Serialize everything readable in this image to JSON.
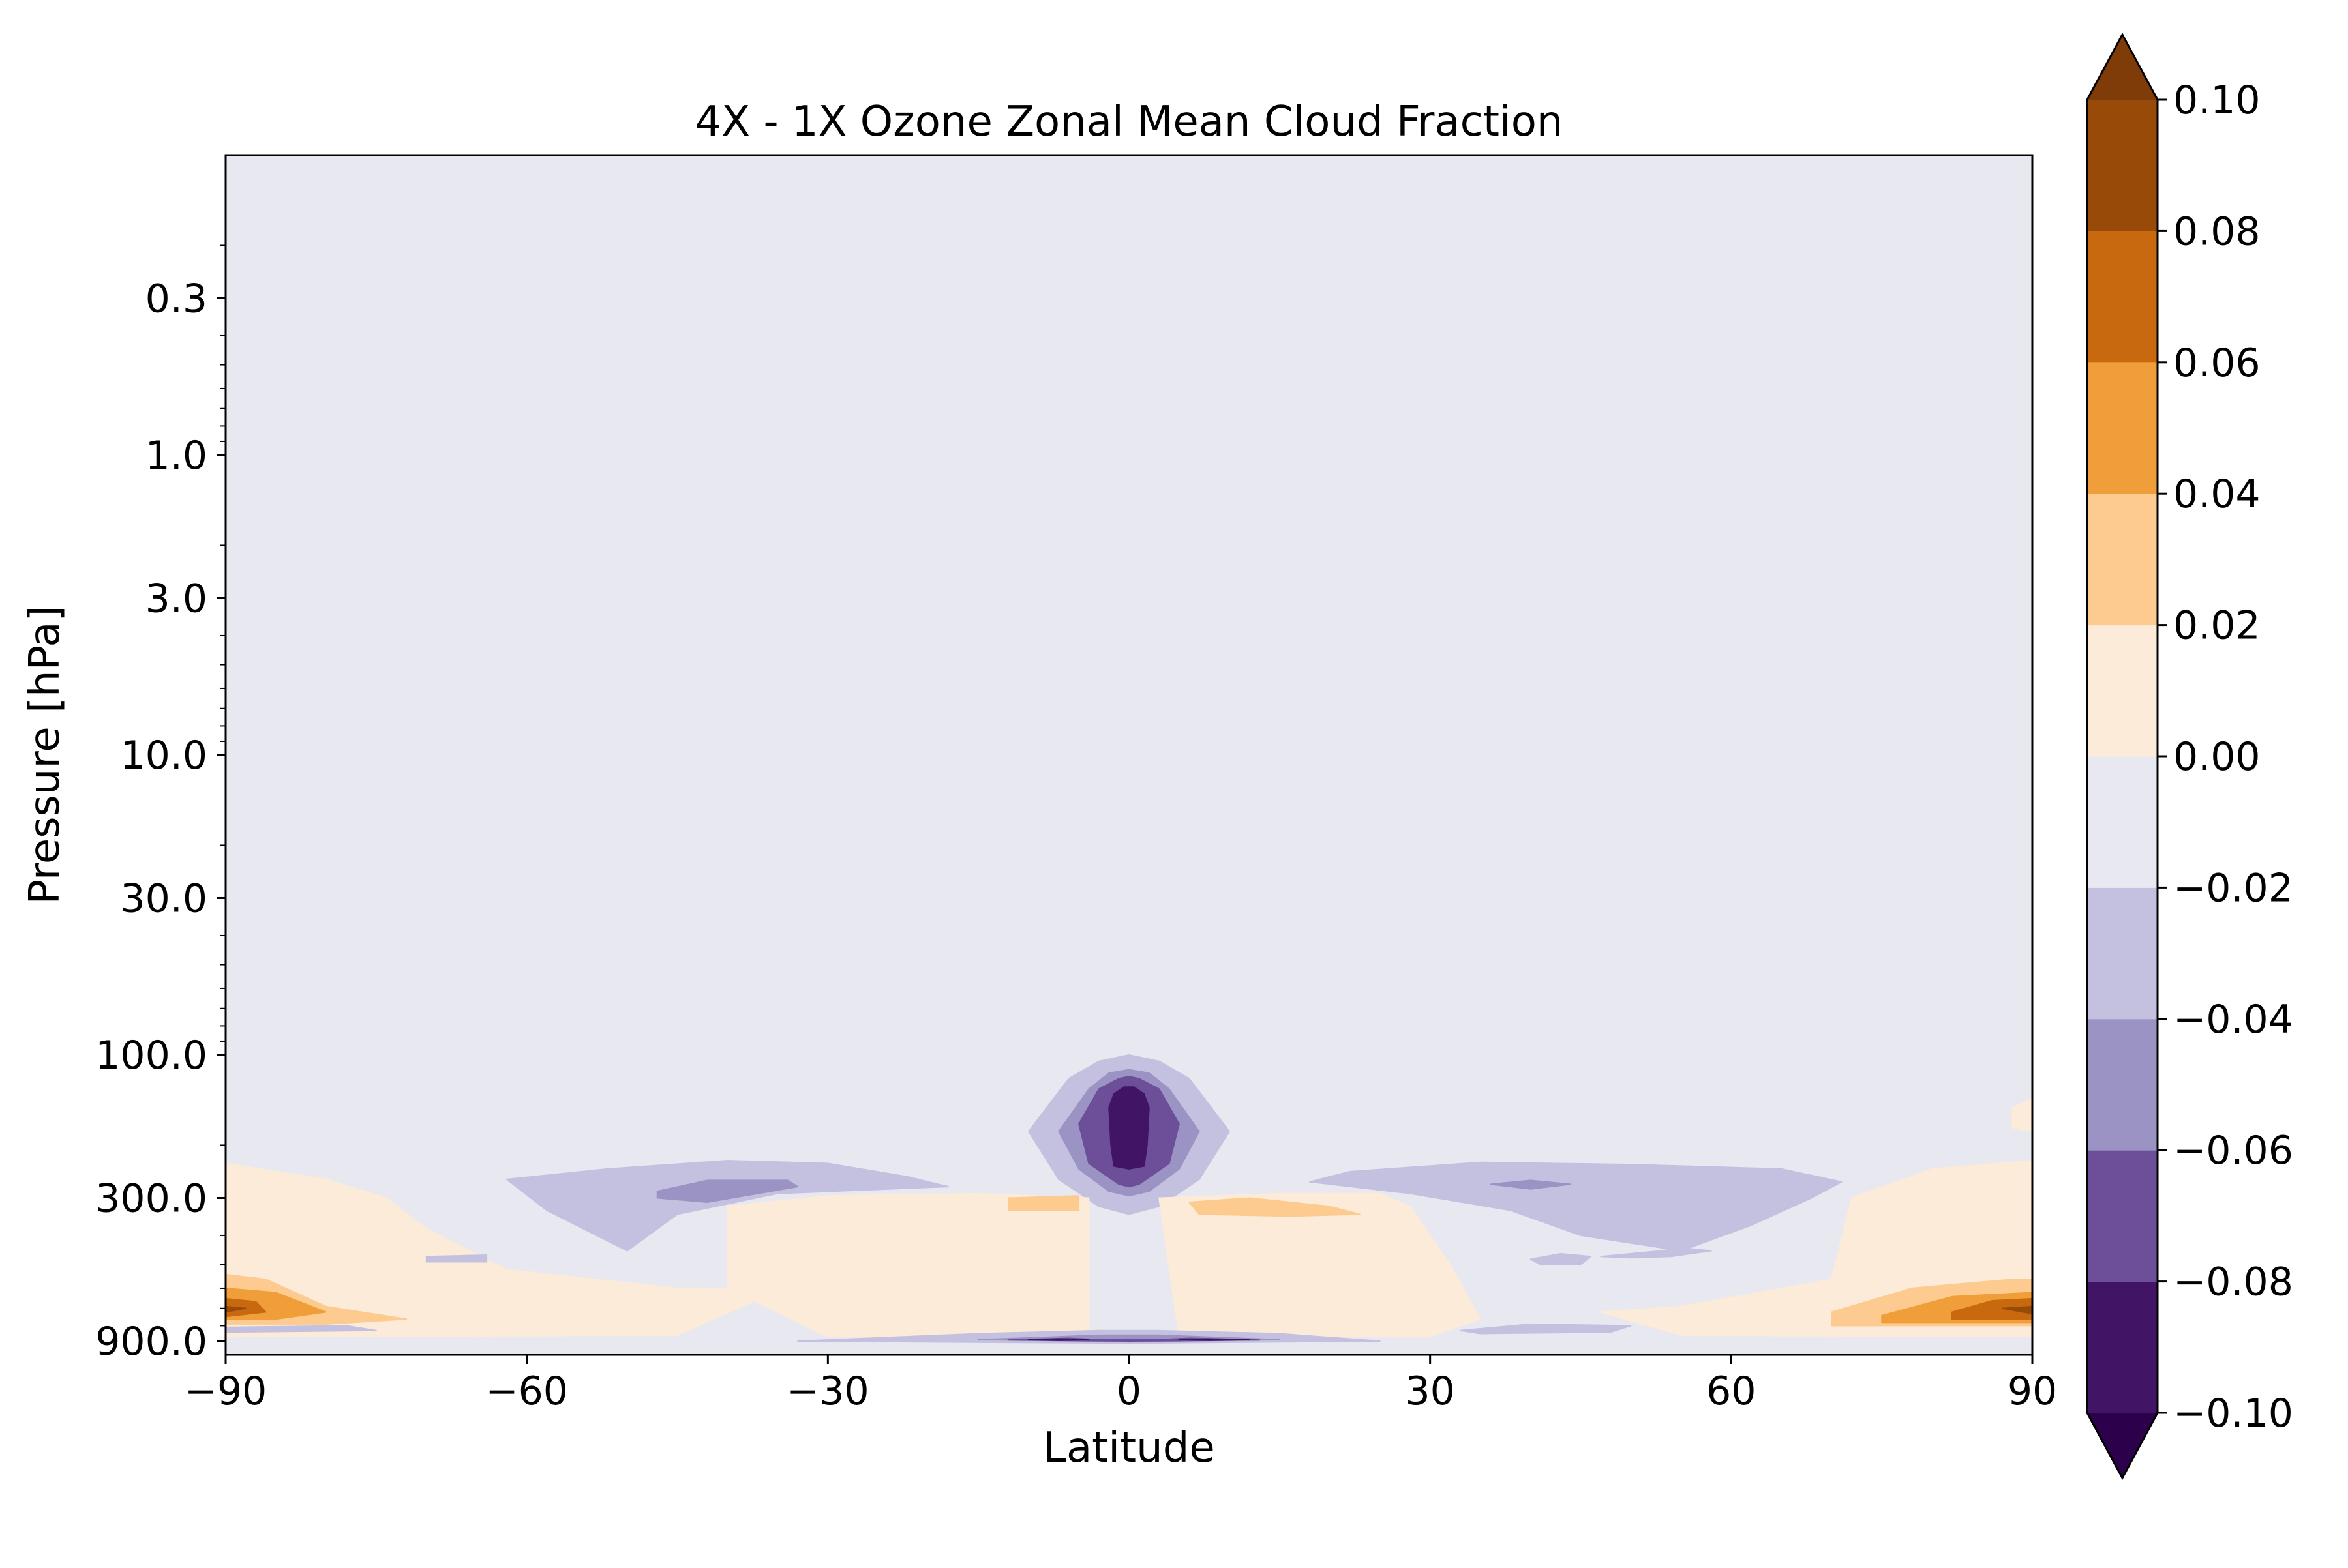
{
  "chart_data": {
    "type": "heatmap",
    "subtype": "filled-contour",
    "title": "4X - 1X Ozone Zonal Mean Cloud Fraction",
    "xlabel": "Latitude",
    "ylabel": "Pressure [hPa]",
    "xlim": [
      -90,
      90
    ],
    "x_ticks": [
      -90,
      -60,
      -30,
      0,
      30,
      60,
      90
    ],
    "x_tick_labels": [
      "−90",
      "−60",
      "−30",
      "0",
      "30",
      "60",
      "90"
    ],
    "y_scale": "log",
    "y_inverted": true,
    "ylim": [
      0.1,
      1000
    ],
    "y_ticks": [
      0.3,
      1.0,
      3.0,
      10.0,
      30.0,
      100.0,
      300.0,
      900.0
    ],
    "y_tick_labels": [
      "0.3",
      "1.0",
      "3.0",
      "10.0",
      "30.0",
      "100.0",
      "300.0",
      "900.0"
    ],
    "grid": false,
    "colormap": "PuOr_r",
    "colorbar": {
      "levels": [
        -0.1,
        -0.08,
        -0.06,
        -0.04,
        -0.02,
        0.0,
        0.02,
        0.04,
        0.06,
        0.08,
        0.1
      ],
      "tick_labels": [
        "−0.10",
        "−0.08",
        "−0.06",
        "−0.04",
        "−0.02",
        "0.00",
        "0.02",
        "0.04",
        "0.06",
        "0.08",
        "0.10"
      ],
      "extend": "both",
      "under_color": "#2d004b",
      "over_color": "#7f3b08",
      "colors": [
        "#421466",
        "#6c4f98",
        "#9b93c3",
        "#c4c1e0",
        "#e8e8f1",
        "#fbebd8",
        "#fdca8f",
        "#ef9e3a",
        "#c8690f",
        "#984a09"
      ]
    },
    "background_level": "-0.02 to 0.00",
    "regions": [
      {
        "level": "-0.04 to -0.02",
        "color": "#c4c1e0",
        "points": [
          [
            -10,
            180
          ],
          [
            -6,
            120
          ],
          [
            -3,
            105
          ],
          [
            0,
            100
          ],
          [
            3,
            105
          ],
          [
            6,
            120
          ],
          [
            10,
            180
          ],
          [
            7,
            260
          ],
          [
            3,
            320
          ],
          [
            0,
            340
          ],
          [
            -3,
            320
          ],
          [
            -7,
            260
          ]
        ]
      },
      {
        "level": "-0.06 to -0.04",
        "color": "#9b93c3",
        "points": [
          [
            -7,
            180
          ],
          [
            -4,
            130
          ],
          [
            -2,
            115
          ],
          [
            0,
            112
          ],
          [
            2,
            115
          ],
          [
            4,
            130
          ],
          [
            7,
            180
          ],
          [
            5,
            240
          ],
          [
            2,
            285
          ],
          [
            0,
            295
          ],
          [
            -2,
            285
          ],
          [
            -5,
            240
          ]
        ]
      },
      {
        "level": "-0.08 to -0.06",
        "color": "#6c4f98",
        "points": [
          [
            -5,
            170
          ],
          [
            -3,
            130
          ],
          [
            -1,
            120
          ],
          [
            0,
            118
          ],
          [
            1,
            120
          ],
          [
            3,
            130
          ],
          [
            5,
            170
          ],
          [
            4,
            230
          ],
          [
            1,
            270
          ],
          [
            0,
            275
          ],
          [
            -1,
            270
          ],
          [
            -4,
            230
          ]
        ]
      },
      {
        "level": "-0.10 to -0.08",
        "color": "#421466",
        "points": [
          [
            -2,
            150
          ],
          [
            -1.5,
            135
          ],
          [
            -0.5,
            128
          ],
          [
            0.5,
            128
          ],
          [
            1.5,
            135
          ],
          [
            2,
            150
          ],
          [
            1.8,
            200
          ],
          [
            1.5,
            235
          ],
          [
            0,
            240
          ],
          [
            -1.5,
            235
          ],
          [
            -1.8,
            200
          ]
        ]
      },
      {
        "level": "-0.04 to -0.02",
        "color": "#c4c1e0",
        "points": [
          [
            -62,
            260
          ],
          [
            -52,
            240
          ],
          [
            -40,
            225
          ],
          [
            -30,
            230
          ],
          [
            -22,
            255
          ],
          [
            -18,
            275
          ],
          [
            -35,
            290
          ],
          [
            -45,
            340
          ],
          [
            -50,
            450
          ],
          [
            -58,
            330
          ]
        ]
      },
      {
        "level": "-0.06 to -0.04",
        "color": "#9b93c3",
        "points": [
          [
            -47,
            285
          ],
          [
            -42,
            262
          ],
          [
            -34,
            262
          ],
          [
            -33,
            275
          ],
          [
            -42,
            310
          ],
          [
            -47,
            300
          ]
        ]
      },
      {
        "level": "-0.04 to -0.02",
        "color": "#c4c1e0",
        "points": [
          [
            18,
            265
          ],
          [
            22,
            245
          ],
          [
            35,
            228
          ],
          [
            50,
            232
          ],
          [
            65,
            240
          ],
          [
            71,
            265
          ],
          [
            68,
            300
          ],
          [
            62,
            370
          ],
          [
            55,
            450
          ],
          [
            45,
            400
          ],
          [
            38,
            330
          ],
          [
            28,
            290
          ]
        ]
      },
      {
        "level": "-0.06 to -0.04",
        "color": "#9b93c3",
        "points": [
          [
            36,
            270
          ],
          [
            40,
            262
          ],
          [
            44,
            270
          ],
          [
            40,
            280
          ]
        ]
      },
      {
        "level": "0.00 to 0.02",
        "color": "#fbebd8",
        "points": [
          [
            -90,
            230
          ],
          [
            -80,
            260
          ],
          [
            -74,
            300
          ],
          [
            -70,
            380
          ],
          [
            -62,
            520
          ],
          [
            -45,
            600
          ],
          [
            -35,
            610
          ],
          [
            -45,
            860
          ],
          [
            -90,
            870
          ]
        ]
      },
      {
        "level": "0.00 to 0.02",
        "color": "#fbebd8",
        "points": [
          [
            -40,
            320
          ],
          [
            -30,
            295
          ],
          [
            -15,
            290
          ],
          [
            -4,
            300
          ],
          [
            -4,
            870
          ],
          [
            -30,
            870
          ],
          [
            -40,
            600
          ]
        ]
      },
      {
        "level": "0.00 to 0.02",
        "color": "#fbebd8",
        "points": [
          [
            3,
            300
          ],
          [
            15,
            290
          ],
          [
            25,
            290
          ],
          [
            28,
            320
          ],
          [
            32,
            500
          ],
          [
            35,
            760
          ],
          [
            30,
            870
          ],
          [
            5,
            870
          ]
        ]
      },
      {
        "level": "0.00 to 0.02",
        "color": "#fbebd8",
        "points": [
          [
            72,
            300
          ],
          [
            80,
            240
          ],
          [
            90,
            225
          ],
          [
            90,
            870
          ],
          [
            55,
            860
          ],
          [
            47,
            720
          ],
          [
            55,
            690
          ],
          [
            70,
            560
          ]
        ]
      },
      {
        "level": "0.02 to 0.04",
        "color": "#fdca8f",
        "points": [
          [
            -12,
            300
          ],
          [
            -5,
            295
          ],
          [
            -5,
            330
          ],
          [
            -12,
            330
          ]
        ]
      },
      {
        "level": "0.02 to 0.04",
        "color": "#fdca8f",
        "points": [
          [
            6,
            310
          ],
          [
            12,
            300
          ],
          [
            20,
            320
          ],
          [
            23,
            340
          ],
          [
            16,
            345
          ],
          [
            7,
            340
          ]
        ]
      },
      {
        "level": "0.02 to 0.04",
        "color": "#fdca8f",
        "points": [
          [
            -90,
            540
          ],
          [
            -86,
            560
          ],
          [
            -80,
            690
          ],
          [
            -72,
            760
          ],
          [
            -80,
            790
          ],
          [
            -90,
            790
          ]
        ]
      },
      {
        "level": "0.02 to 0.04",
        "color": "#fdca8f",
        "points": [
          [
            70,
            720
          ],
          [
            78,
            600
          ],
          [
            88,
            560
          ],
          [
            90,
            560
          ],
          [
            90,
            800
          ],
          [
            70,
            800
          ]
        ]
      },
      {
        "level": "0.04 to 0.06",
        "color": "#ef9e3a",
        "points": [
          [
            -90,
            600
          ],
          [
            -85,
            620
          ],
          [
            -80,
            720
          ],
          [
            -85,
            760
          ],
          [
            -90,
            760
          ]
        ]
      },
      {
        "level": "0.04 to 0.06",
        "color": "#ef9e3a",
        "points": [
          [
            75,
            740
          ],
          [
            82,
            640
          ],
          [
            90,
            620
          ],
          [
            90,
            780
          ],
          [
            75,
            780
          ]
        ]
      },
      {
        "level": "0.06 to 0.08",
        "color": "#c8690f",
        "points": [
          [
            -90,
            650
          ],
          [
            -87,
            665
          ],
          [
            -86,
            720
          ],
          [
            -90,
            745
          ]
        ]
      },
      {
        "level": "0.06 to 0.08",
        "color": "#c8690f",
        "points": [
          [
            82,
            720
          ],
          [
            86,
            660
          ],
          [
            90,
            650
          ],
          [
            90,
            760
          ],
          [
            82,
            760
          ]
        ]
      },
      {
        "level": "0.08 to 0.10",
        "color": "#984a09",
        "points": [
          [
            -90,
            690
          ],
          [
            -88,
            700
          ],
          [
            -90,
            720
          ]
        ]
      },
      {
        "level": "0.08 to 0.10",
        "color": "#984a09",
        "points": [
          [
            87,
            700
          ],
          [
            90,
            690
          ],
          [
            90,
            730
          ]
        ]
      },
      {
        "level": "-0.04 to -0.02",
        "color": "#c4c1e0",
        "points": [
          [
            -33,
            900
          ],
          [
            -15,
            850
          ],
          [
            -3,
            830
          ],
          [
            3,
            830
          ],
          [
            15,
            850
          ],
          [
            25,
            900
          ],
          [
            0,
            915
          ]
        ]
      },
      {
        "level": "-0.06 to -0.04",
        "color": "#9b93c3",
        "points": [
          [
            -15,
            890
          ],
          [
            -3,
            860
          ],
          [
            3,
            860
          ],
          [
            15,
            890
          ],
          [
            0,
            905
          ]
        ]
      },
      {
        "level": "-0.08 to -0.06",
        "color": "#6c4f98",
        "points": [
          [
            -12,
            892
          ],
          [
            -6,
            880
          ],
          [
            -3,
            890
          ],
          [
            3,
            890
          ],
          [
            6,
            880
          ],
          [
            13,
            892
          ],
          [
            0,
            900
          ]
        ]
      },
      {
        "level": "-0.10 to -0.08",
        "color": "#421466",
        "points": [
          [
            -10,
            890
          ],
          [
            -7,
            885
          ],
          [
            -4,
            890
          ],
          [
            -7,
            895
          ]
        ]
      },
      {
        "level": "-0.10 to -0.08",
        "color": "#421466",
        "points": [
          [
            5,
            890
          ],
          [
            8,
            885
          ],
          [
            12,
            890
          ],
          [
            8,
            895
          ]
        ]
      },
      {
        "level": "-0.04 to -0.02",
        "color": "#c4c1e0",
        "points": [
          [
            -90,
            810
          ],
          [
            -78,
            800
          ],
          [
            -75,
            830
          ],
          [
            -90,
            840
          ]
        ]
      },
      {
        "level": "-0.04 to -0.02",
        "color": "#c4c1e0",
        "points": [
          [
            33,
            830
          ],
          [
            40,
            790
          ],
          [
            50,
            800
          ],
          [
            48,
            840
          ],
          [
            35,
            850
          ]
        ]
      },
      {
        "level": "-0.04 to -0.02",
        "color": "#c4c1e0",
        "points": [
          [
            -70,
            470
          ],
          [
            -64,
            465
          ],
          [
            -64,
            490
          ],
          [
            -70,
            490
          ]
        ]
      },
      {
        "level": "-0.04 to -0.02",
        "color": "#c4c1e0",
        "points": [
          [
            40,
            480
          ],
          [
            43,
            460
          ],
          [
            46,
            470
          ],
          [
            45,
            500
          ],
          [
            41,
            500
          ]
        ]
      },
      {
        "level": "-0.04 to -0.02",
        "color": "#c4c1e0",
        "points": [
          [
            47,
            470
          ],
          [
            53,
            450
          ],
          [
            55,
            440
          ],
          [
            58,
            450
          ],
          [
            54,
            470
          ],
          [
            50,
            475
          ]
        ]
      },
      {
        "level": "0.00 to 0.02",
        "color": "#fbebd8",
        "points": [
          [
            88,
            150
          ],
          [
            90,
            140
          ],
          [
            90,
            180
          ],
          [
            88,
            175
          ]
        ]
      }
    ]
  }
}
